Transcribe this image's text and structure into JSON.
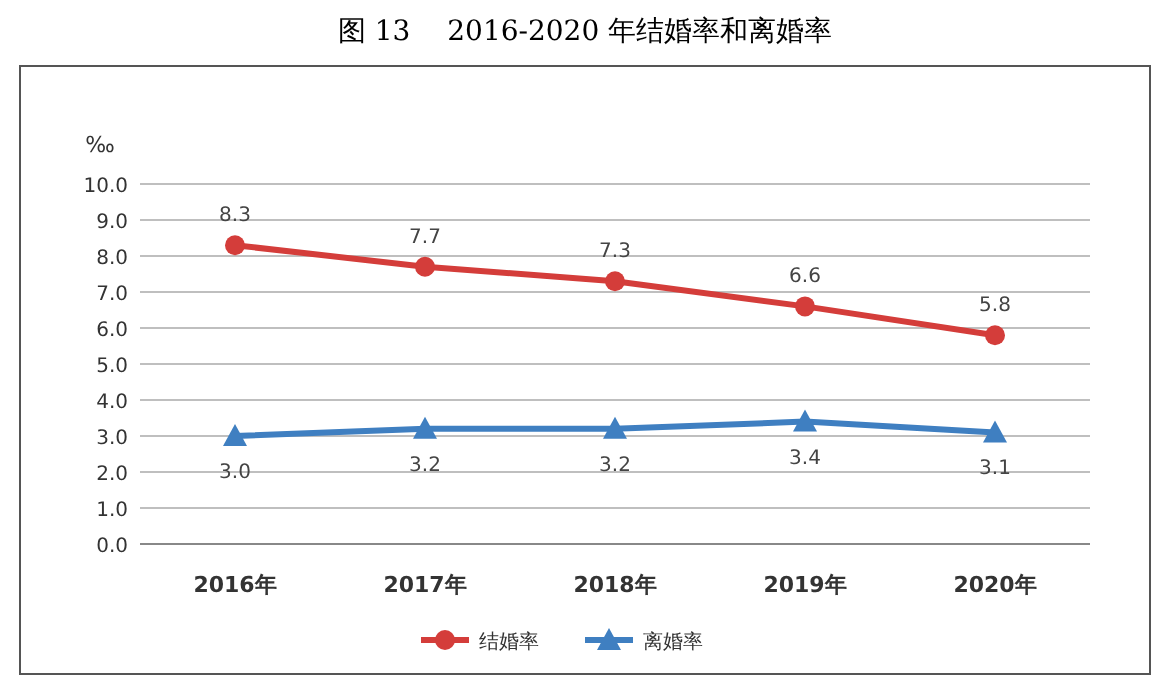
{
  "chart_data": {
    "type": "line",
    "title": "图 13　 2016-2020 年结婚率和离婚率",
    "ylabel": "‰",
    "categories": [
      "2016年",
      "2017年",
      "2018年",
      "2019年",
      "2020年"
    ],
    "series": [
      {
        "name": "结婚率",
        "color": "#d43d3a",
        "marker": "circle",
        "values": [
          8.3,
          7.7,
          7.3,
          6.6,
          5.8
        ],
        "value_labels": [
          "8.3",
          "7.7",
          "7.3",
          "6.6",
          "5.8"
        ]
      },
      {
        "name": "离婚率",
        "color": "#3f7fc1",
        "marker": "triangle",
        "values": [
          3.0,
          3.2,
          3.2,
          3.4,
          3.1
        ],
        "value_labels": [
          "3.0",
          "3.2",
          "3.2",
          "3.4",
          "3.1"
        ]
      }
    ],
    "ylim": [
      0,
      10
    ],
    "yticks": [
      {
        "value": 0,
        "label": "0.0"
      },
      {
        "value": 1,
        "label": "1.0"
      },
      {
        "value": 2,
        "label": "2.0"
      },
      {
        "value": 3,
        "label": "3.0"
      },
      {
        "value": 4,
        "label": "4.0"
      },
      {
        "value": 5,
        "label": "5.0"
      },
      {
        "value": 6,
        "label": "6.0"
      },
      {
        "value": 7,
        "label": "7.0"
      },
      {
        "value": 8,
        "label": "8.0"
      },
      {
        "value": 9,
        "label": "9.0"
      },
      {
        "value": 10,
        "label": "10.0"
      }
    ],
    "grid": "y",
    "legend": "bottom"
  }
}
